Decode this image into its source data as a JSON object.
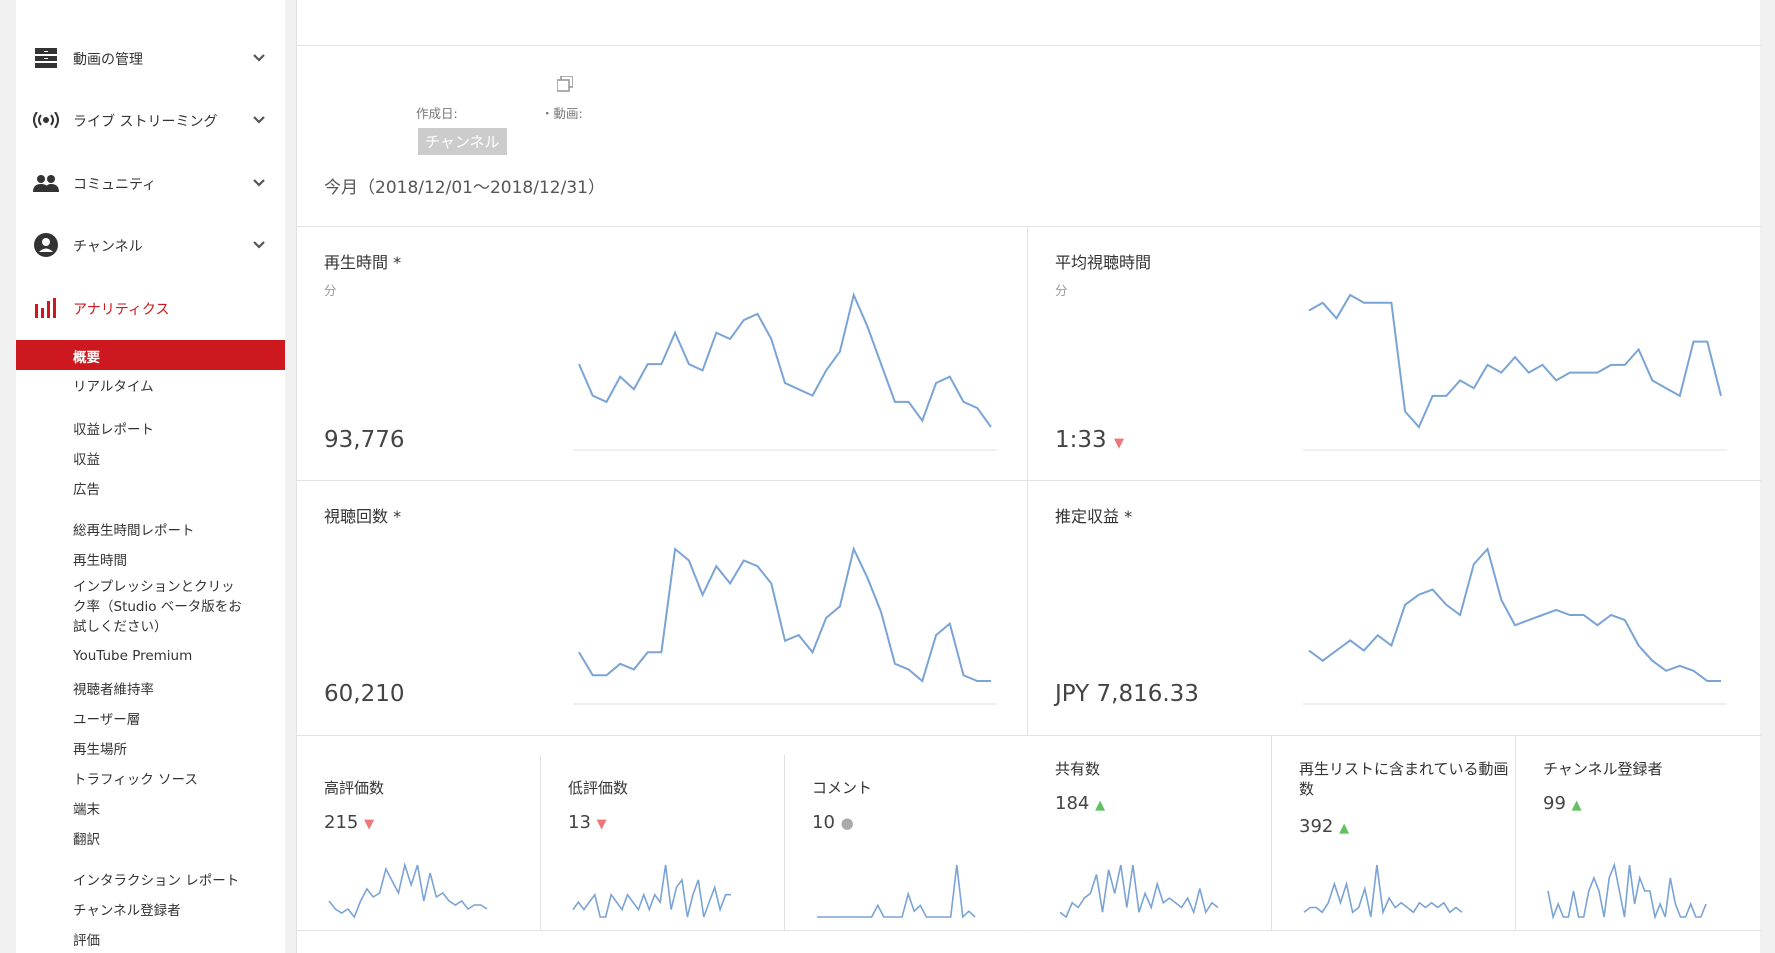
{
  "nav": {
    "items": [
      {
        "label": "動画の管理",
        "icon": "video-manager-icon"
      },
      {
        "label": "ライブ ストリーミング",
        "icon": "live-broadcast-icon"
      },
      {
        "label": "コミュニティ",
        "icon": "community-icon"
      },
      {
        "label": "チャンネル",
        "icon": "channel-account-icon"
      },
      {
        "label": "アナリティクス",
        "icon": "analytics-bar-icon"
      }
    ],
    "sub_items": [
      "概要",
      "リアルタイム",
      "収益レポート",
      "収益",
      "広告",
      "総再生時間レポート",
      "再生時間",
      "インプレッションとクリック率（Studio ベータ版をお試しください）",
      "YouTube Premium",
      "視聴者維持率",
      "ユーザー層",
      "再生場所",
      "トラフィック ソース",
      "端末",
      "翻訳",
      "インタラクション レポート",
      "チャンネル登録者",
      "評価"
    ],
    "accent": "#cc181e"
  },
  "header": {
    "created_label": "作成日:",
    "videos_label": "・動画:",
    "channel_chip": "チャンネル",
    "period": "今月（2018/12/01〜2018/12/31）"
  },
  "cards": {
    "watch_time": {
      "title": "再生時間 *",
      "unit": "分",
      "value": "93,776"
    },
    "avg_view": {
      "title": "平均視聴時間",
      "unit": "分",
      "value": "1:33",
      "trend": "▼"
    },
    "views": {
      "title": "視聴回数 *",
      "value": "60,210"
    },
    "revenue": {
      "title": "推定収益 *",
      "value": "JPY 7,816.33"
    }
  },
  "small_cards": {
    "likes": {
      "title": "高評価数",
      "value": "215",
      "trend": "▼"
    },
    "dislikes": {
      "title": "低評価数",
      "value": "13",
      "trend": "▼"
    },
    "comments": {
      "title": "コメント",
      "value": "10",
      "trend": "●"
    },
    "shares": {
      "title": "共有数",
      "value": "184",
      "trend": "▲"
    },
    "playlists": {
      "title": "再生リストに含まれている動画数",
      "value": "392",
      "trend": "▲"
    },
    "subscribers": {
      "title": "チャンネル登録者",
      "value": "99",
      "trend": "▲"
    }
  },
  "colors": {
    "line": "#7aa3d6",
    "down": "#ea7878",
    "up": "#5fc25f"
  },
  "chart_data": [
    {
      "type": "line",
      "series": [
        {
          "values": [
            25,
            20,
            19,
            23,
            21,
            25,
            25,
            30,
            25,
            24,
            30,
            29,
            32,
            33,
            29,
            22,
            21,
            20,
            24,
            27,
            36,
            31,
            25,
            19,
            19,
            16,
            22,
            23,
            19,
            18,
            15
          ]
        }
      ]
    },
    {
      "type": "line",
      "series": [
        {
          "values": [
            95,
            96,
            94,
            97,
            96,
            96,
            96,
            82,
            80,
            84,
            84,
            86,
            85,
            88,
            87,
            89,
            87,
            88,
            86,
            87,
            87,
            87,
            88,
            88,
            90,
            86,
            85,
            84,
            91,
            91,
            84
          ]
        }
      ]
    },
    {
      "type": "line",
      "series": [
        {
          "values": [
            42,
            38,
            38,
            40,
            39,
            42,
            42,
            60,
            58,
            52,
            57,
            54,
            58,
            57,
            54,
            44,
            45,
            42,
            48,
            50,
            60,
            55,
            49,
            40,
            39,
            37,
            45,
            47,
            38,
            37,
            37
          ]
        }
      ]
    },
    {
      "type": "line",
      "series": [
        {
          "values": [
            16,
            14,
            16,
            18,
            16,
            19,
            17,
            25,
            27,
            28,
            25,
            23,
            33,
            36,
            26,
            21,
            22,
            23,
            24,
            23,
            23,
            21,
            23,
            22,
            17,
            14,
            12,
            13,
            12,
            10,
            10
          ]
        }
      ]
    },
    {
      "type": "line",
      "series": [
        {
          "values": [
            6,
            4,
            3,
            4,
            2,
            6,
            9,
            7,
            8,
            14,
            11,
            8,
            15,
            10,
            15,
            6,
            13,
            7,
            8,
            6,
            5,
            6,
            4,
            5,
            5,
            4
          ]
        }
      ]
    },
    {
      "type": "line",
      "series": [
        {
          "values": [
            8,
            9,
            8,
            9,
            10,
            7,
            7,
            10,
            9,
            8,
            10,
            9,
            8,
            10,
            8,
            10,
            9,
            14,
            8,
            11,
            12,
            7,
            10,
            12,
            7,
            9,
            11,
            8,
            10,
            10
          ]
        }
      ]
    },
    {
      "type": "line",
      "series": [
        {
          "values": [
            0,
            0,
            0,
            0,
            0,
            0,
            0,
            0,
            0,
            0,
            2,
            0,
            0,
            0,
            0,
            4,
            1,
            2,
            0,
            0,
            0,
            0,
            0,
            9,
            0,
            1,
            0
          ]
        }
      ]
    },
    {
      "type": "line",
      "series": [
        {
          "values": [
            2,
            1,
            4,
            3,
            5,
            6,
            10,
            2,
            11,
            6,
            12,
            3,
            12,
            2,
            6,
            3,
            8,
            4,
            5,
            4,
            3,
            5,
            2,
            7,
            2,
            4,
            3
          ]
        }
      ]
    },
    {
      "type": "line",
      "series": [
        {
          "values": [
            2,
            3,
            3,
            2,
            4,
            8,
            4,
            8,
            2,
            3,
            7,
            1,
            12,
            2,
            5,
            3,
            4,
            3,
            2,
            4,
            3,
            4,
            3,
            4,
            2,
            3,
            2
          ]
        }
      ]
    },
    {
      "type": "line",
      "series": [
        {
          "values": [
            7,
            5,
            6,
            5,
            5,
            7,
            5,
            5,
            7,
            8,
            7,
            5,
            8,
            9,
            7,
            5,
            9,
            6,
            8,
            7,
            7,
            5,
            6,
            5,
            8,
            6,
            5,
            5,
            6,
            5,
            5,
            6
          ]
        }
      ]
    }
  ]
}
